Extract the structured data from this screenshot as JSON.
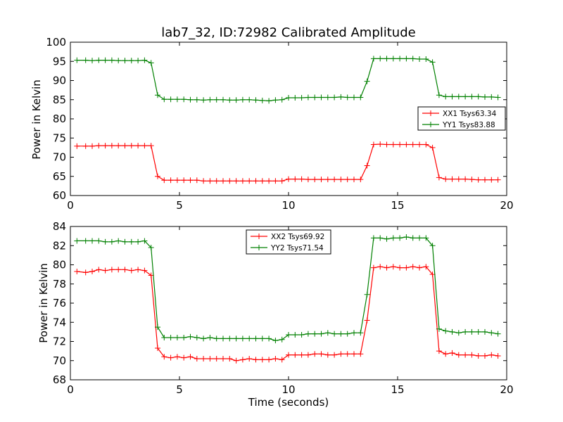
{
  "colors": {
    "red": "#ff0000",
    "green": "#008000",
    "axes": "#000000",
    "background": "#ffffff"
  },
  "chart_data": [
    {
      "type": "line",
      "title": "lab7_32, ID:72982 Calibrated Amplitude",
      "xlabel": "",
      "ylabel": "Power in Kelvin",
      "xlim": [
        0,
        20
      ],
      "ylim": [
        60,
        100
      ],
      "xticks": [
        0,
        5,
        10,
        15,
        20
      ],
      "yticks": [
        60,
        65,
        70,
        75,
        80,
        85,
        90,
        95,
        100
      ],
      "grid": false,
      "legend_position": "center-right",
      "x": [
        0.3,
        0.7,
        1.0,
        1.3,
        1.6,
        1.9,
        2.2,
        2.5,
        2.8,
        3.1,
        3.4,
        3.7,
        4.0,
        4.3,
        4.6,
        4.9,
        5.2,
        5.5,
        5.8,
        6.1,
        6.4,
        6.7,
        7.0,
        7.3,
        7.6,
        7.9,
        8.2,
        8.5,
        8.8,
        9.1,
        9.4,
        9.7,
        10.0,
        10.3,
        10.6,
        10.9,
        11.2,
        11.5,
        11.8,
        12.1,
        12.4,
        12.7,
        13.0,
        13.3,
        13.6,
        13.9,
        14.2,
        14.5,
        14.8,
        15.1,
        15.4,
        15.7,
        16.0,
        16.3,
        16.6,
        16.9,
        17.2,
        17.5,
        17.8,
        18.1,
        18.4,
        18.7,
        19.0,
        19.3,
        19.6
      ],
      "series": [
        {
          "name": "XX1 Tsys63.34",
          "color": "#ff0000",
          "values": [
            72.9,
            72.9,
            72.9,
            73.0,
            73.0,
            73.0,
            73.0,
            73.0,
            73.0,
            73.0,
            73.0,
            73.0,
            65.0,
            64.0,
            64.0,
            64.0,
            64.0,
            64.0,
            64.0,
            63.8,
            63.8,
            63.8,
            63.8,
            63.8,
            63.8,
            63.8,
            63.8,
            63.8,
            63.8,
            63.8,
            63.8,
            63.8,
            64.3,
            64.3,
            64.3,
            64.2,
            64.2,
            64.2,
            64.2,
            64.2,
            64.2,
            64.2,
            64.2,
            64.2,
            67.8,
            73.3,
            73.4,
            73.3,
            73.3,
            73.3,
            73.3,
            73.3,
            73.3,
            73.3,
            72.5,
            64.7,
            64.3,
            64.3,
            64.3,
            64.3,
            64.2,
            64.1,
            64.1,
            64.1,
            64.1
          ]
        },
        {
          "name": "YY1 Tsys83.88",
          "color": "#008000",
          "values": [
            95.3,
            95.3,
            95.2,
            95.3,
            95.3,
            95.3,
            95.2,
            95.2,
            95.2,
            95.2,
            95.3,
            94.6,
            86.2,
            85.1,
            85.1,
            85.1,
            85.1,
            85.0,
            85.0,
            84.9,
            85.0,
            85.0,
            85.0,
            84.9,
            84.9,
            85.0,
            85.0,
            84.9,
            84.8,
            84.7,
            84.9,
            85.0,
            85.5,
            85.5,
            85.5,
            85.6,
            85.6,
            85.6,
            85.6,
            85.6,
            85.7,
            85.6,
            85.6,
            85.6,
            89.8,
            95.7,
            95.7,
            95.7,
            95.7,
            95.7,
            95.7,
            95.7,
            95.6,
            95.6,
            94.8,
            86.2,
            85.8,
            85.8,
            85.8,
            85.8,
            85.8,
            85.8,
            85.7,
            85.7,
            85.6
          ]
        }
      ]
    },
    {
      "type": "line",
      "title": "",
      "xlabel": "Time (seconds)",
      "ylabel": "Power in Kelvin",
      "xlim": [
        0,
        20
      ],
      "ylim": [
        68,
        84
      ],
      "xticks": [
        0,
        5,
        10,
        15,
        20
      ],
      "yticks": [
        68,
        70,
        72,
        74,
        76,
        78,
        80,
        82,
        84
      ],
      "grid": false,
      "legend_position": "top-center",
      "x": [
        0.3,
        0.7,
        1.0,
        1.3,
        1.6,
        1.9,
        2.2,
        2.5,
        2.8,
        3.1,
        3.4,
        3.7,
        4.0,
        4.3,
        4.6,
        4.9,
        5.2,
        5.5,
        5.8,
        6.1,
        6.4,
        6.7,
        7.0,
        7.3,
        7.6,
        7.9,
        8.2,
        8.5,
        8.8,
        9.1,
        9.4,
        9.7,
        10.0,
        10.3,
        10.6,
        10.9,
        11.2,
        11.5,
        11.8,
        12.1,
        12.4,
        12.7,
        13.0,
        13.3,
        13.6,
        13.9,
        14.2,
        14.5,
        14.8,
        15.1,
        15.4,
        15.7,
        16.0,
        16.3,
        16.6,
        16.9,
        17.2,
        17.5,
        17.8,
        18.1,
        18.4,
        18.7,
        19.0,
        19.3,
        19.6
      ],
      "series": [
        {
          "name": "XX2 Tsys69.92",
          "color": "#ff0000",
          "values": [
            79.3,
            79.2,
            79.3,
            79.5,
            79.4,
            79.5,
            79.5,
            79.5,
            79.4,
            79.5,
            79.4,
            78.9,
            71.3,
            70.4,
            70.3,
            70.4,
            70.3,
            70.4,
            70.2,
            70.2,
            70.2,
            70.2,
            70.2,
            70.2,
            70.0,
            70.1,
            70.2,
            70.1,
            70.1,
            70.1,
            70.2,
            70.1,
            70.6,
            70.6,
            70.6,
            70.6,
            70.7,
            70.7,
            70.6,
            70.6,
            70.7,
            70.7,
            70.7,
            70.7,
            74.2,
            79.7,
            79.8,
            79.7,
            79.8,
            79.7,
            79.7,
            79.8,
            79.7,
            79.8,
            79.0,
            71.0,
            70.7,
            70.8,
            70.6,
            70.6,
            70.6,
            70.5,
            70.5,
            70.6,
            70.5
          ]
        },
        {
          "name": "YY2 Tsys71.54",
          "color": "#008000",
          "values": [
            82.5,
            82.5,
            82.5,
            82.5,
            82.4,
            82.4,
            82.5,
            82.4,
            82.4,
            82.4,
            82.5,
            81.8,
            73.5,
            72.4,
            72.4,
            72.4,
            72.4,
            72.5,
            72.4,
            72.3,
            72.4,
            72.3,
            72.3,
            72.3,
            72.3,
            72.3,
            72.3,
            72.3,
            72.3,
            72.3,
            72.1,
            72.2,
            72.7,
            72.7,
            72.7,
            72.8,
            72.8,
            72.8,
            72.9,
            72.8,
            72.8,
            72.8,
            72.9,
            72.9,
            76.9,
            82.8,
            82.8,
            82.7,
            82.8,
            82.8,
            82.9,
            82.8,
            82.8,
            82.8,
            82.0,
            73.3,
            73.1,
            73.0,
            72.9,
            73.0,
            73.0,
            73.0,
            73.0,
            72.9,
            72.8
          ]
        }
      ]
    }
  ]
}
